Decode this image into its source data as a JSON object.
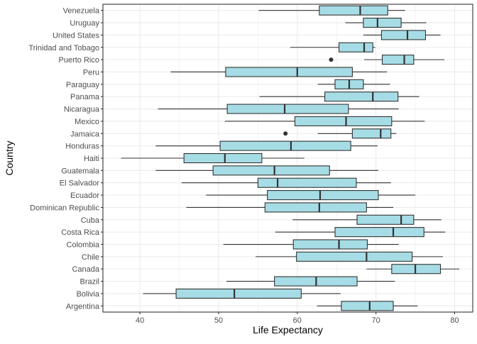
{
  "chart_data": {
    "type": "boxplot",
    "orientation": "horizontal",
    "xlabel": "Life Expectancy",
    "ylabel": "Country",
    "xlim": [
      35.3,
      82.3
    ],
    "x_ticks": [
      40,
      50,
      60,
      70,
      80
    ],
    "grid": true,
    "legend": "none",
    "theme": "bw",
    "colors": {
      "box_fill": "#a6dce5",
      "box_stroke": "#333333",
      "whisker": "#333333",
      "outlier": "#333333",
      "grid": "#ebebeb"
    },
    "series": [
      {
        "category": "Argentina",
        "min": 62.5,
        "q1": 65.6,
        "median": 69.2,
        "q3": 72.2,
        "max": 75.3,
        "outliers": []
      },
      {
        "category": "Bolivia",
        "min": 40.4,
        "q1": 44.6,
        "median": 52.0,
        "q3": 60.5,
        "max": 65.5,
        "outliers": []
      },
      {
        "category": "Brazil",
        "min": 51.0,
        "q1": 57.1,
        "median": 62.4,
        "q3": 67.6,
        "max": 72.4,
        "outliers": []
      },
      {
        "category": "Canada",
        "min": 68.8,
        "q1": 72.0,
        "median": 75.0,
        "q3": 78.2,
        "max": 80.6,
        "outliers": []
      },
      {
        "category": "Chile",
        "min": 54.7,
        "q1": 59.9,
        "median": 68.8,
        "q3": 74.6,
        "max": 78.5,
        "outliers": []
      },
      {
        "category": "Colombia",
        "min": 50.6,
        "q1": 59.5,
        "median": 65.3,
        "q3": 68.9,
        "max": 72.9,
        "outliers": []
      },
      {
        "category": "Costa Rica",
        "min": 57.2,
        "q1": 64.8,
        "median": 72.2,
        "q3": 76.1,
        "max": 78.8,
        "outliers": []
      },
      {
        "category": "Cuba",
        "min": 59.4,
        "q1": 67.6,
        "median": 73.2,
        "q3": 74.8,
        "max": 78.3,
        "outliers": []
      },
      {
        "category": "Dominican Republic",
        "min": 45.9,
        "q1": 55.9,
        "median": 62.8,
        "q3": 68.8,
        "max": 72.2,
        "outliers": []
      },
      {
        "category": "Ecuador",
        "min": 48.4,
        "q1": 56.2,
        "median": 62.9,
        "q3": 70.3,
        "max": 75.0,
        "outliers": []
      },
      {
        "category": "El Salvador",
        "min": 45.3,
        "q1": 55.0,
        "median": 57.5,
        "q3": 67.5,
        "max": 71.9,
        "outliers": []
      },
      {
        "category": "Guatemala",
        "min": 42.0,
        "q1": 49.3,
        "median": 57.1,
        "q3": 64.1,
        "max": 70.3,
        "outliers": []
      },
      {
        "category": "Haiti",
        "min": 37.6,
        "q1": 45.6,
        "median": 50.8,
        "q3": 55.5,
        "max": 60.9,
        "outliers": []
      },
      {
        "category": "Honduras",
        "min": 42.0,
        "q1": 50.2,
        "median": 59.2,
        "q3": 66.8,
        "max": 70.2,
        "outliers": []
      },
      {
        "category": "Jamaica",
        "min": 62.6,
        "q1": 67.0,
        "median": 70.6,
        "q3": 71.9,
        "max": 72.6,
        "outliers": [
          58.5
        ]
      },
      {
        "category": "Mexico",
        "min": 50.8,
        "q1": 59.7,
        "median": 66.2,
        "q3": 72.0,
        "max": 76.2,
        "outliers": []
      },
      {
        "category": "Nicaragua",
        "min": 42.3,
        "q1": 51.1,
        "median": 58.4,
        "q3": 66.5,
        "max": 72.9,
        "outliers": []
      },
      {
        "category": "Panama",
        "min": 55.2,
        "q1": 63.5,
        "median": 69.6,
        "q3": 72.8,
        "max": 75.5,
        "outliers": []
      },
      {
        "category": "Paraguay",
        "min": 62.6,
        "q1": 64.8,
        "median": 66.6,
        "q3": 68.4,
        "max": 71.8,
        "outliers": []
      },
      {
        "category": "Peru",
        "min": 43.9,
        "q1": 50.9,
        "median": 60.0,
        "q3": 67.0,
        "max": 71.4,
        "outliers": []
      },
      {
        "category": "Puerto Rico",
        "min": 68.5,
        "q1": 70.8,
        "median": 73.6,
        "q3": 74.8,
        "max": 78.7,
        "outliers": [
          64.3
        ]
      },
      {
        "category": "Trinidad and Tobago",
        "min": 59.1,
        "q1": 65.3,
        "median": 68.5,
        "q3": 69.6,
        "max": 69.9,
        "outliers": []
      },
      {
        "category": "United States",
        "min": 68.4,
        "q1": 70.7,
        "median": 74.0,
        "q3": 76.3,
        "max": 78.2,
        "outliers": []
      },
      {
        "category": "Uruguay",
        "min": 66.1,
        "q1": 68.4,
        "median": 70.2,
        "q3": 73.2,
        "max": 76.4,
        "outliers": []
      },
      {
        "category": "Venezuela",
        "min": 55.1,
        "q1": 62.8,
        "median": 68.0,
        "q3": 71.5,
        "max": 73.7,
        "outliers": []
      }
    ]
  }
}
